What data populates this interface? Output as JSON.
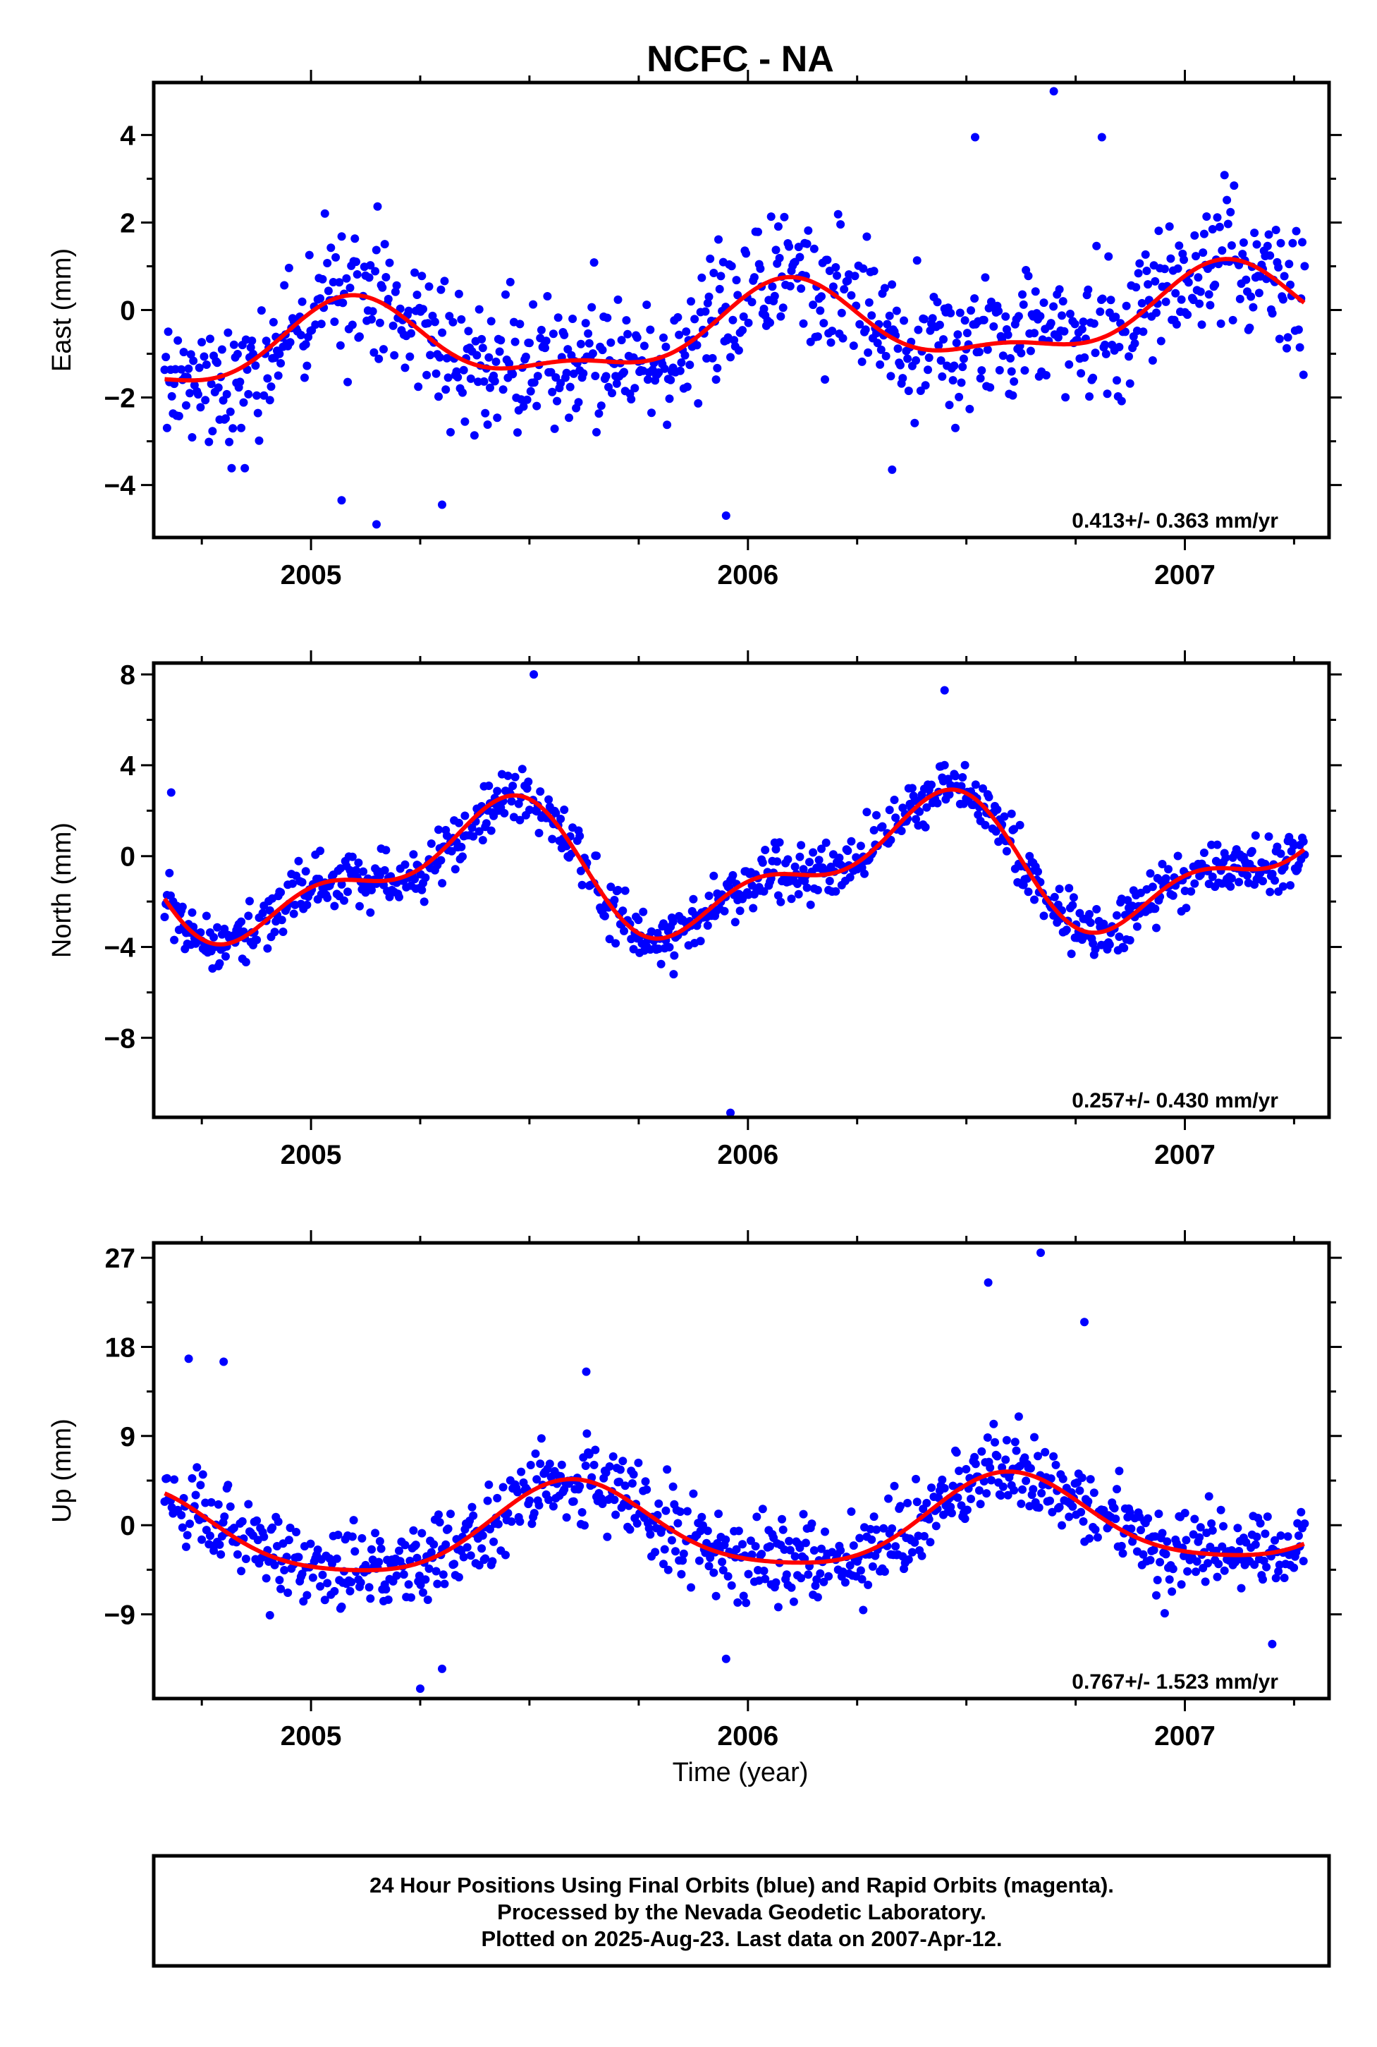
{
  "title": "NCFC - NA",
  "xlabel": "Time (year)",
  "footer": {
    "line1": "24 Hour Positions Using Final Orbits (blue) and Rapid Orbits (magenta).",
    "line2": "Processed by the Nevada Geodetic Laboratory.",
    "line3": "Plotted on 2025-Aug-23. Last data on 2007-Apr-12."
  },
  "colors": {
    "points": "#0000ff",
    "model": "#ff0000",
    "frame": "#000000"
  },
  "chart_data": [
    {
      "type": "scatter",
      "ylabel": "East (mm)",
      "rate_label": "0.413+/- 0.363 mm/yr",
      "xlim": [
        2004.64,
        2007.33
      ],
      "ylim": [
        -5.2,
        5.2
      ],
      "xticks": [
        "2005",
        "2006",
        "2007"
      ],
      "yticks": [
        4,
        2,
        0,
        -2,
        -4
      ],
      "yticklabels": [
        "4",
        "2",
        "0",
        "−2",
        "−4"
      ],
      "model": {
        "rate": 0.413,
        "offset": -0.9,
        "amp1": 0.85,
        "phase1": 1.0,
        "amp2": 0.35,
        "phase2": 0.4
      },
      "points": {
        "scatter": 1.2,
        "seed": 11
      },
      "outliers": [
        [
          2006.7,
          5.0
        ],
        [
          2005.07,
          -4.35
        ],
        [
          2005.15,
          -4.9
        ],
        [
          2005.3,
          -4.45
        ],
        [
          2005.95,
          -4.7
        ],
        [
          2006.33,
          -3.65
        ],
        [
          2006.81,
          3.95
        ],
        [
          2006.52,
          3.95
        ]
      ]
    },
    {
      "type": "scatter",
      "ylabel": "North (mm)",
      "rate_label": "0.257+/- 0.430 mm/yr",
      "xlim": [
        2004.64,
        2007.33
      ],
      "ylim": [
        -11.5,
        8.5
      ],
      "xticks": [
        "2005",
        "2006",
        "2007"
      ],
      "yticks": [
        8,
        4,
        0,
        -4,
        -8
      ],
      "yticklabels": [
        "8",
        "4",
        "0",
        "−4",
        "−8"
      ],
      "model": {
        "rate": 0.257,
        "offset": -0.8,
        "amp1": 2.4,
        "phase1": -0.9,
        "amp2": 1.3,
        "phase2": 1.6
      },
      "points": {
        "scatter": 0.95,
        "seed": 23
      },
      "outliers": [
        [
          2005.51,
          8.0
        ],
        [
          2005.96,
          -11.3
        ],
        [
          2004.68,
          2.8
        ],
        [
          2005.83,
          -5.2
        ],
        [
          2006.45,
          7.3
        ]
      ]
    },
    {
      "type": "scatter",
      "ylabel": "Up (mm)",
      "rate_label": "0.767+/- 1.523 mm/yr",
      "xlim": [
        2004.64,
        2007.33
      ],
      "ylim": [
        -17.5,
        28.5
      ],
      "xticks": [
        "2005",
        "2006",
        "2007"
      ],
      "yticks": [
        27,
        18,
        9,
        0,
        -9
      ],
      "yticklabels": [
        "27",
        "18",
        "9",
        "0",
        "−9"
      ],
      "model": {
        "rate": 0.767,
        "offset": -1.0,
        "amp1": 4.4,
        "phase1": -2.2,
        "amp2": 0.8,
        "phase2": 0.5
      },
      "points": {
        "scatter": 3.4,
        "seed": 37
      },
      "outliers": [
        [
          2006.67,
          27.5
        ],
        [
          2006.55,
          24.5
        ],
        [
          2006.77,
          20.5
        ],
        [
          2004.72,
          16.8
        ],
        [
          2004.8,
          16.5
        ],
        [
          2005.25,
          -16.5
        ],
        [
          2005.3,
          -14.5
        ],
        [
          2005.95,
          -13.5
        ],
        [
          2007.2,
          -12.0
        ],
        [
          2005.63,
          15.5
        ]
      ]
    }
  ]
}
